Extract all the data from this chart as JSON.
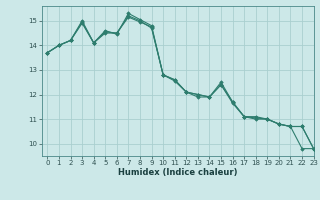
{
  "title": "",
  "xlabel": "Humidex (Indice chaleur)",
  "background_color": "#cce8e8",
  "grid_color": "#aacfcf",
  "line_color": "#2e7d6e",
  "xlim": [
    -0.5,
    23
  ],
  "ylim": [
    9.5,
    15.6
  ],
  "xticks": [
    0,
    1,
    2,
    3,
    4,
    5,
    6,
    7,
    8,
    9,
    10,
    11,
    12,
    13,
    14,
    15,
    16,
    17,
    18,
    19,
    20,
    21,
    22,
    23
  ],
  "yticks": [
    10,
    11,
    12,
    13,
    14,
    15
  ],
  "series": [
    [
      13.7,
      14.0,
      14.2,
      14.9,
      14.1,
      14.6,
      14.45,
      15.3,
      15.05,
      14.8,
      12.8,
      12.6,
      12.1,
      12.0,
      11.9,
      12.5,
      11.7,
      11.1,
      11.1,
      11.0,
      10.8,
      10.7,
      9.8,
      9.8
    ],
    [
      13.7,
      14.0,
      14.2,
      14.95,
      14.1,
      14.55,
      14.5,
      15.15,
      14.95,
      14.75,
      12.8,
      12.55,
      12.1,
      12.0,
      11.9,
      12.4,
      11.65,
      11.1,
      11.05,
      11.0,
      10.8,
      10.7,
      10.7,
      9.8
    ],
    [
      13.7,
      14.0,
      14.2,
      15.0,
      14.1,
      14.5,
      14.5,
      15.2,
      15.0,
      14.7,
      12.8,
      12.6,
      12.1,
      11.9,
      11.9,
      12.4,
      11.7,
      11.1,
      11.0,
      11.0,
      10.8,
      10.7,
      10.7,
      9.8
    ]
  ]
}
